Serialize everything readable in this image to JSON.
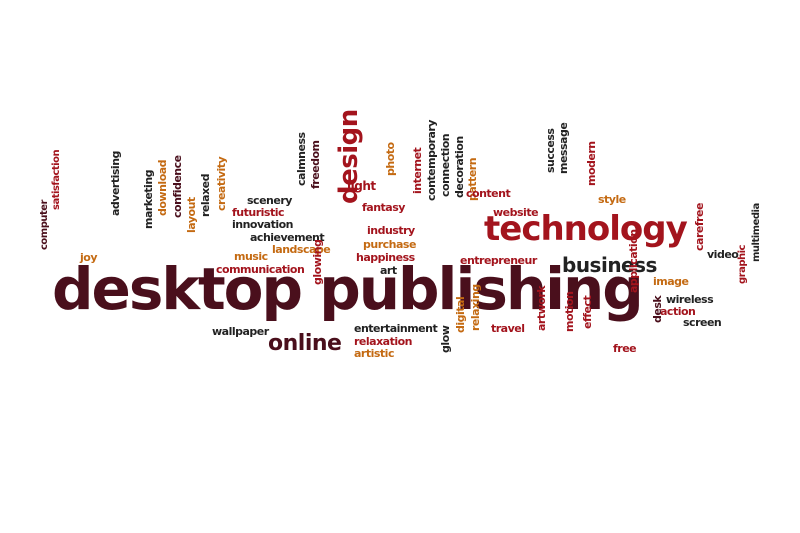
{
  "colors": {
    "dark": "#4a0f1c",
    "red": "#a3141d",
    "orange": "#c46a12",
    "black": "#222222"
  },
  "words": [
    {
      "text": "desktop publishing",
      "color": "dark"
    },
    {
      "text": "technology",
      "color": "red"
    },
    {
      "text": "business",
      "color": "black"
    },
    {
      "text": "online",
      "color": "dark"
    },
    {
      "text": "design",
      "color": "red"
    },
    {
      "text": "computer",
      "color": "dark"
    },
    {
      "text": "satisfaction",
      "color": "red"
    },
    {
      "text": "joy",
      "color": "orange"
    },
    {
      "text": "advertising",
      "color": "black"
    },
    {
      "text": "marketing",
      "color": "black"
    },
    {
      "text": "download",
      "color": "orange"
    },
    {
      "text": "confidence",
      "color": "dark"
    },
    {
      "text": "layout",
      "color": "orange"
    },
    {
      "text": "relaxed",
      "color": "black"
    },
    {
      "text": "creativity",
      "color": "orange"
    },
    {
      "text": "futuristic",
      "color": "red"
    },
    {
      "text": "innovation",
      "color": "black"
    },
    {
      "text": "scenery",
      "color": "black"
    },
    {
      "text": "calmness",
      "color": "black"
    },
    {
      "text": "freedom",
      "color": "dark"
    },
    {
      "text": "achievement",
      "color": "black"
    },
    {
      "text": "music",
      "color": "orange"
    },
    {
      "text": "landscape",
      "color": "orange"
    },
    {
      "text": "communication",
      "color": "red"
    },
    {
      "text": "glowing",
      "color": "red"
    },
    {
      "text": "light",
      "color": "red"
    },
    {
      "text": "fantasy",
      "color": "red"
    },
    {
      "text": "photo",
      "color": "orange"
    },
    {
      "text": "industry",
      "color": "red"
    },
    {
      "text": "purchase",
      "color": "orange"
    },
    {
      "text": "happiness",
      "color": "red"
    },
    {
      "text": "art",
      "color": "black"
    },
    {
      "text": "internet",
      "color": "red"
    },
    {
      "text": "contemporary",
      "color": "black"
    },
    {
      "text": "connection",
      "color": "black"
    },
    {
      "text": "decoration",
      "color": "black"
    },
    {
      "text": "pattern",
      "color": "orange"
    },
    {
      "text": "content",
      "color": "red"
    },
    {
      "text": "website",
      "color": "red"
    },
    {
      "text": "success",
      "color": "black"
    },
    {
      "text": "message",
      "color": "black"
    },
    {
      "text": "modern",
      "color": "red"
    },
    {
      "text": "style",
      "color": "orange"
    },
    {
      "text": "entrepreneur",
      "color": "red"
    },
    {
      "text": "carefree",
      "color": "red"
    },
    {
      "text": "video",
      "color": "black"
    },
    {
      "text": "image",
      "color": "orange"
    },
    {
      "text": "multimedia",
      "color": "black"
    },
    {
      "text": "graphic",
      "color": "red"
    },
    {
      "text": "wireless",
      "color": "black"
    },
    {
      "text": "action",
      "color": "red"
    },
    {
      "text": "screen",
      "color": "black"
    },
    {
      "text": "application",
      "color": "red"
    },
    {
      "text": "desk",
      "color": "dark"
    },
    {
      "text": "free",
      "color": "red"
    },
    {
      "text": "effect",
      "color": "red"
    },
    {
      "text": "motion",
      "color": "red"
    },
    {
      "text": "artwork",
      "color": "red"
    },
    {
      "text": "travel",
      "color": "red"
    },
    {
      "text": "relaxing",
      "color": "orange"
    },
    {
      "text": "digital",
      "color": "orange"
    },
    {
      "text": "glow",
      "color": "black"
    },
    {
      "text": "entertainment",
      "color": "black"
    },
    {
      "text": "relaxation",
      "color": "red"
    },
    {
      "text": "artistic",
      "color": "orange"
    },
    {
      "text": "wallpaper",
      "color": "black"
    }
  ]
}
